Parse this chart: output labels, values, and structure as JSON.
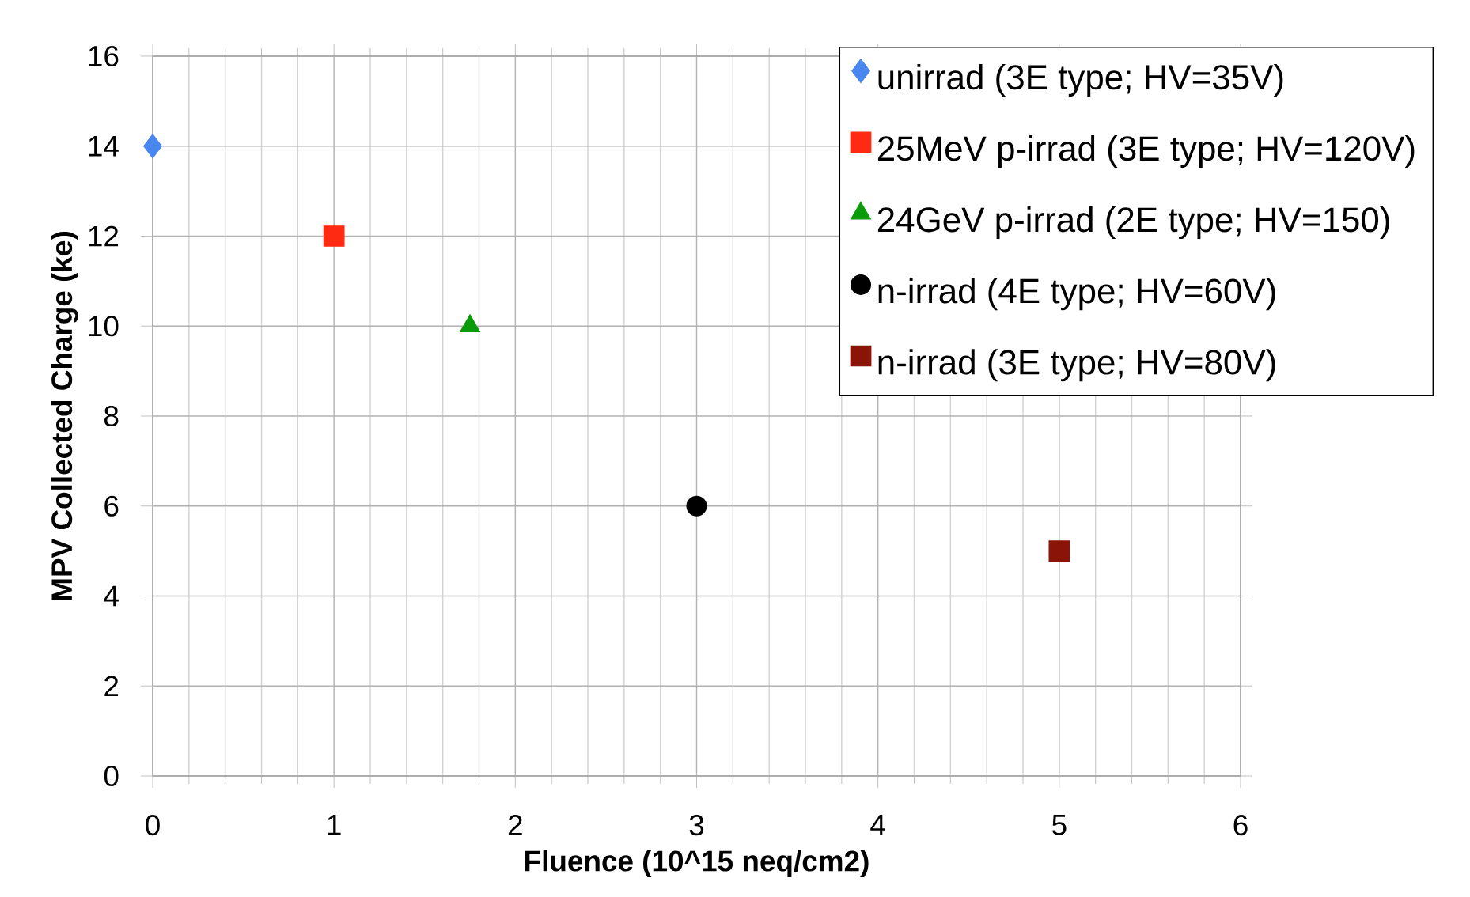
{
  "chart_data": {
    "type": "scatter",
    "xlabel": "Fluence (10^15 neq/cm2)",
    "ylabel": "MPV Collected Charge (ke)",
    "xlim": [
      0,
      6
    ],
    "ylim": [
      0,
      16
    ],
    "xticks": [
      0,
      1,
      2,
      3,
      4,
      5,
      6
    ],
    "yticks": [
      0,
      2,
      4,
      6,
      8,
      10,
      12,
      14,
      16
    ],
    "grid": true,
    "legend": "top right",
    "series": [
      {
        "name": "unirrad (3E type; HV=35V)",
        "color": "#4a86f0",
        "marker": "diamond",
        "x": [
          0
        ],
        "values": [
          14
        ]
      },
      {
        "name": "25MeV p-irrad (3E type; HV=120V)",
        "color": "#ff2a12",
        "marker": "square",
        "x": [
          1
        ],
        "values": [
          12
        ]
      },
      {
        "name": "24GeV p-irrad (2E type; HV=150)",
        "color": "#0a9a0a",
        "marker": "triangle",
        "x": [
          1.75
        ],
        "values": [
          10
        ]
      },
      {
        "name": "n-irrad (4E type; HV=60V)",
        "color": "#000000",
        "marker": "circle",
        "x": [
          3
        ],
        "values": [
          6
        ]
      },
      {
        "name": "n-irrad (3E type; HV=80V)",
        "color": "#8b1408",
        "marker": "square",
        "x": [
          5
        ],
        "values": [
          5
        ]
      }
    ]
  }
}
